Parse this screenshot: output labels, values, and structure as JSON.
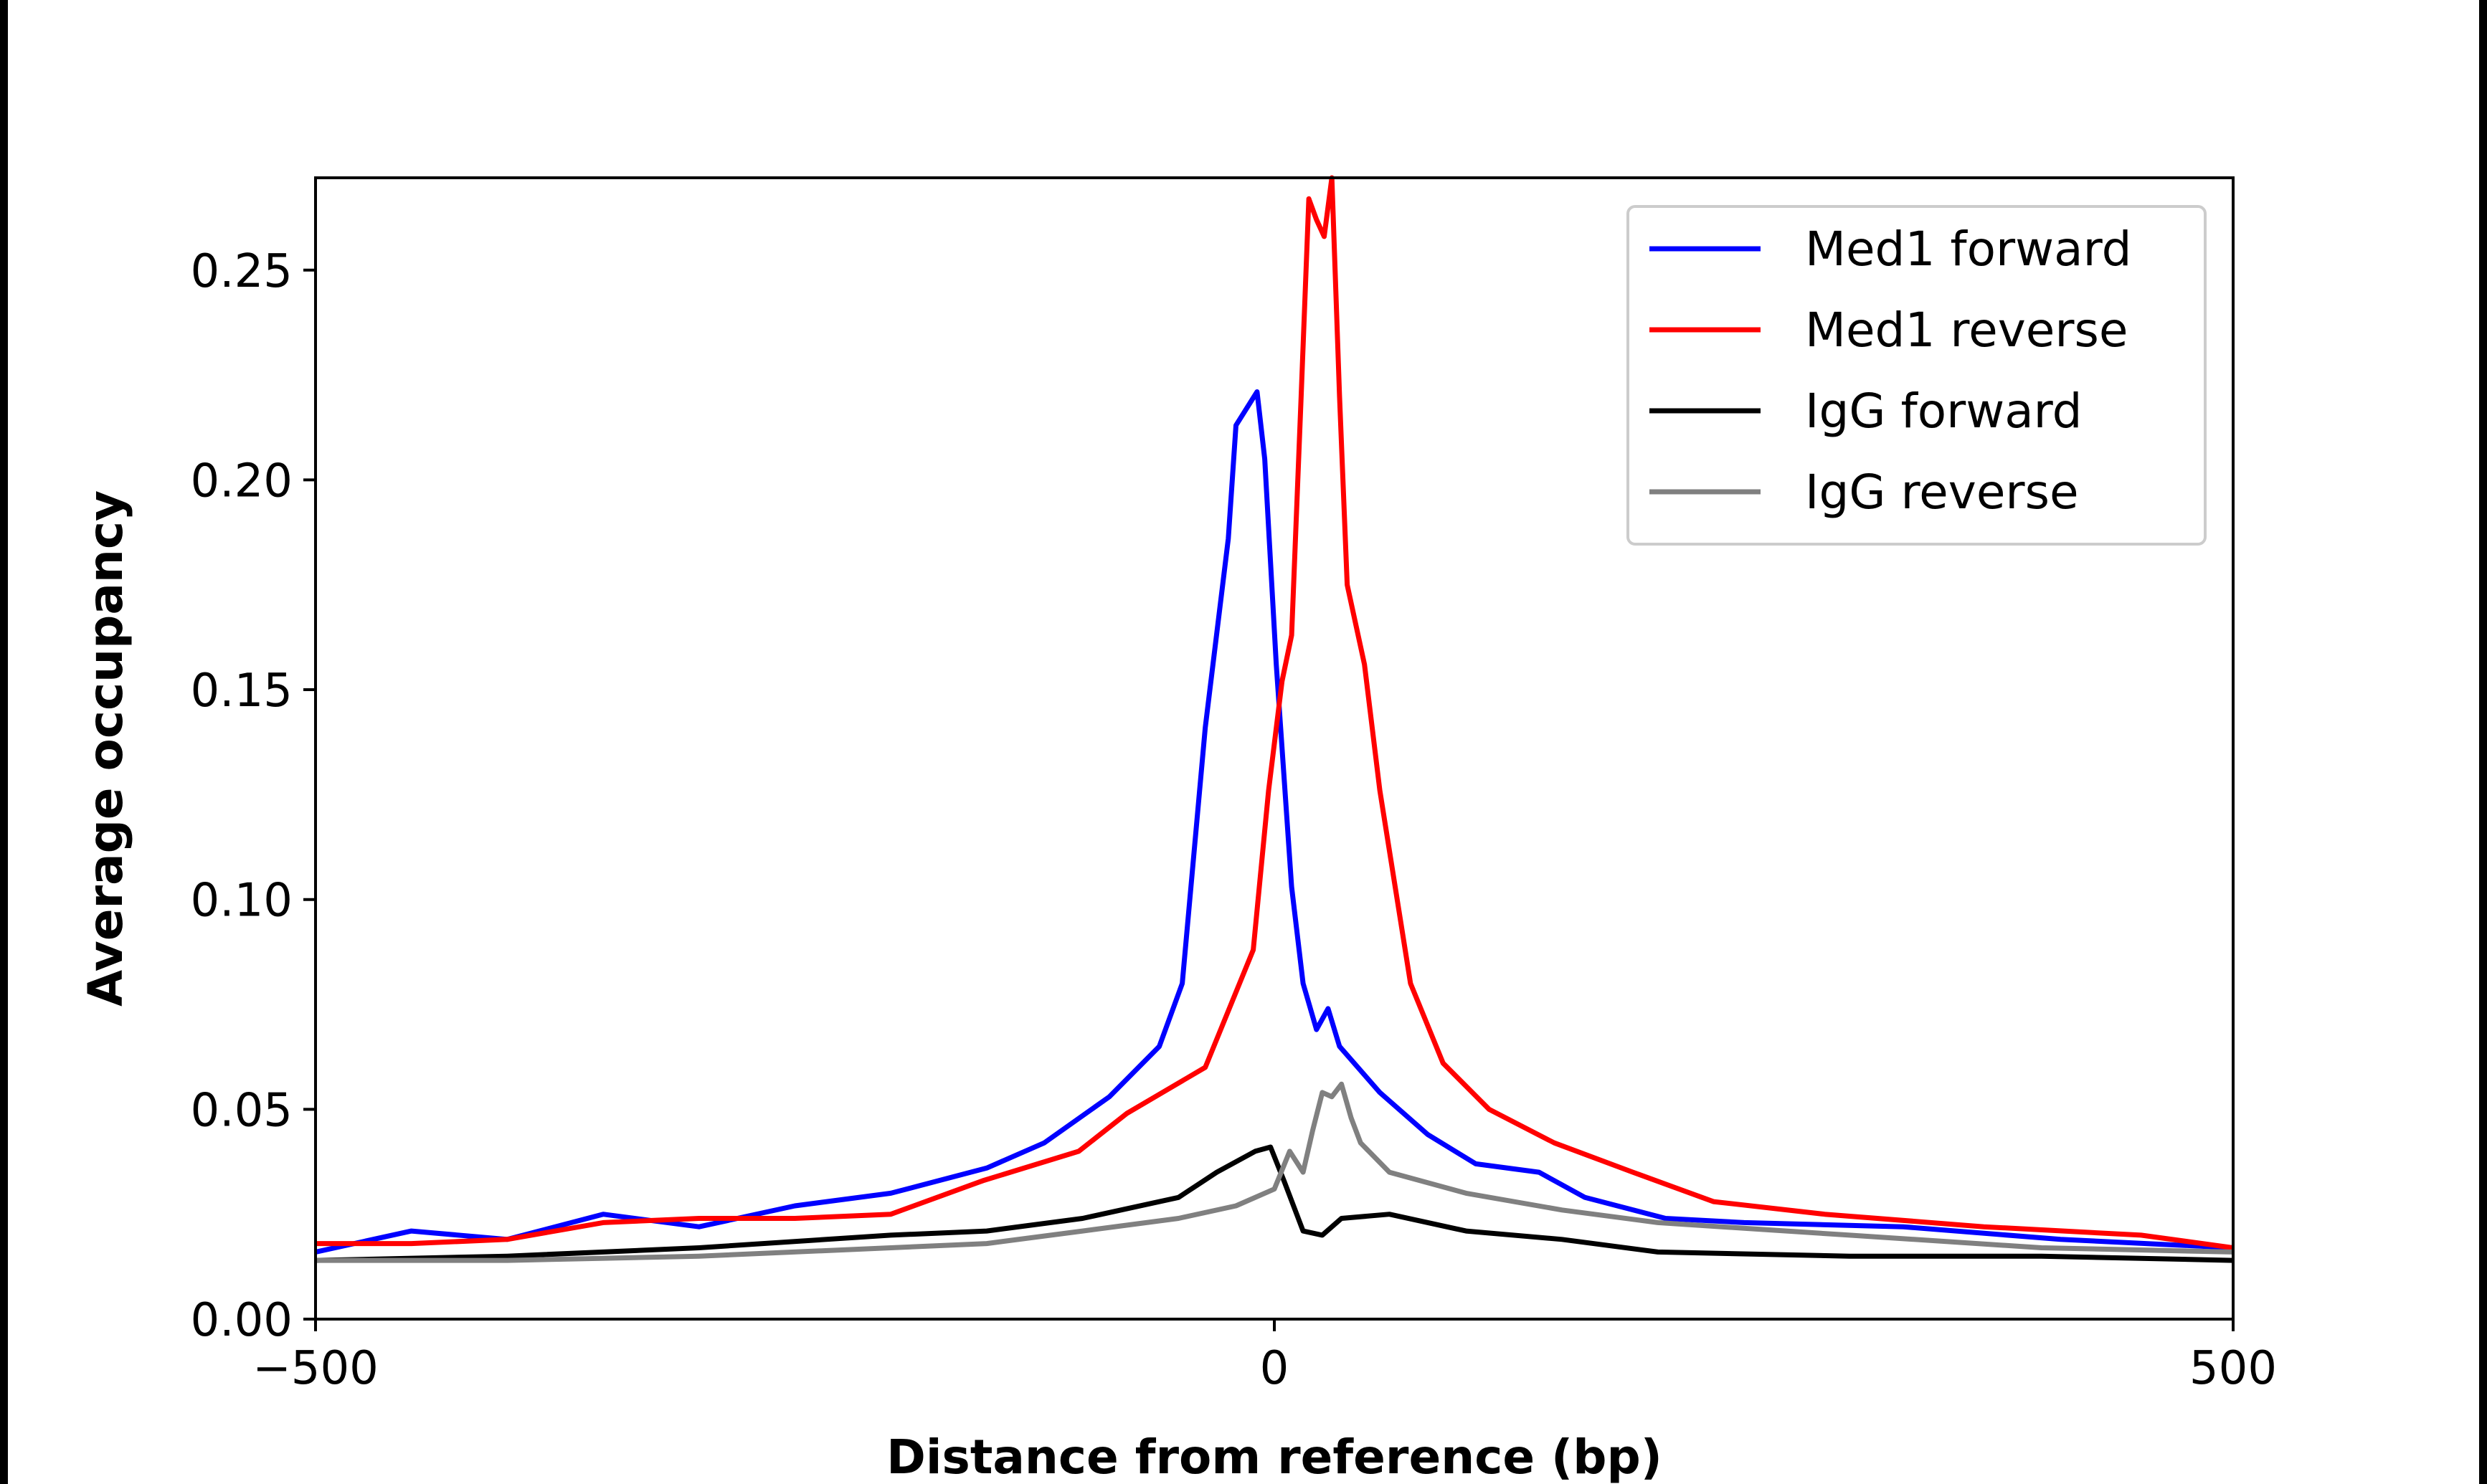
{
  "chart_data": {
    "type": "line",
    "title": "",
    "xlabel": "Distance from reference (bp)",
    "ylabel": "Average occupancy",
    "xlim": [
      -500,
      500
    ],
    "ylim": [
      0,
      0.272
    ],
    "xticks": [
      -500,
      0,
      500
    ],
    "xtick_labels": [
      "−500",
      "0",
      "500"
    ],
    "yticks": [
      0,
      0.05,
      0.1,
      0.15,
      0.2,
      0.25
    ],
    "ytick_labels": [
      "0.00",
      "0.05",
      "0.10",
      "0.15",
      "0.20",
      "0.25"
    ],
    "grid": false,
    "legend_position": "top-right",
    "series": [
      {
        "name": "Med1 forward",
        "color": "#0000ff",
        "x": [
          -500,
          -450,
          -400,
          -350,
          -300,
          -250,
          -200,
          -150,
          -120,
          -86,
          -60,
          -48,
          -36,
          -24,
          -20,
          -9,
          -5,
          1,
          9,
          15,
          22,
          28,
          34,
          55,
          80,
          105,
          138,
          162,
          204,
          245,
          328,
          410,
          500
        ],
        "y": [
          0.016,
          0.021,
          0.019,
          0.025,
          0.022,
          0.027,
          0.03,
          0.036,
          0.042,
          0.053,
          0.065,
          0.08,
          0.141,
          0.186,
          0.213,
          0.221,
          0.205,
          0.156,
          0.103,
          0.08,
          0.069,
          0.074,
          0.065,
          0.054,
          0.044,
          0.037,
          0.035,
          0.029,
          0.024,
          0.023,
          0.022,
          0.019,
          0.017
        ]
      },
      {
        "name": "Med1 reverse",
        "color": "#ff0000",
        "x": [
          -500,
          -450,
          -400,
          -350,
          -300,
          -250,
          -200,
          -152,
          -102,
          -77,
          -36,
          -11,
          -3,
          4,
          9,
          14,
          18,
          22,
          26,
          30,
          34,
          38,
          47,
          55,
          63,
          71,
          88,
          112,
          146,
          187,
          229,
          287,
          370,
          452,
          500
        ],
        "y": [
          0.018,
          0.018,
          0.019,
          0.023,
          0.024,
          0.024,
          0.025,
          0.033,
          0.04,
          0.049,
          0.06,
          0.088,
          0.126,
          0.152,
          0.163,
          0.22,
          0.267,
          0.262,
          0.258,
          0.272,
          0.22,
          0.175,
          0.156,
          0.126,
          0.103,
          0.08,
          0.061,
          0.05,
          0.042,
          0.035,
          0.028,
          0.025,
          0.022,
          0.02,
          0.017
        ]
      },
      {
        "name": "IgG forward",
        "color": "#000000",
        "x": [
          -500,
          -400,
          -300,
          -200,
          -150,
          -100,
          -50,
          -30,
          -10,
          -2,
          5,
          15,
          25,
          35,
          60,
          100,
          150,
          200,
          300,
          400,
          500
        ],
        "y": [
          0.014,
          0.015,
          0.017,
          0.02,
          0.021,
          0.024,
          0.029,
          0.035,
          0.04,
          0.041,
          0.033,
          0.021,
          0.02,
          0.024,
          0.025,
          0.021,
          0.019,
          0.016,
          0.015,
          0.015,
          0.014
        ]
      },
      {
        "name": "IgG reverse",
        "color": "#808080",
        "x": [
          -500,
          -400,
          -300,
          -200,
          -150,
          -100,
          -50,
          -20,
          0,
          8,
          15,
          20,
          25,
          30,
          35,
          40,
          45,
          60,
          100,
          150,
          200,
          300,
          400,
          500
        ],
        "y": [
          0.014,
          0.014,
          0.015,
          0.017,
          0.018,
          0.021,
          0.024,
          0.027,
          0.031,
          0.04,
          0.035,
          0.045,
          0.054,
          0.053,
          0.056,
          0.048,
          0.042,
          0.035,
          0.03,
          0.026,
          0.023,
          0.02,
          0.017,
          0.016
        ]
      }
    ]
  }
}
